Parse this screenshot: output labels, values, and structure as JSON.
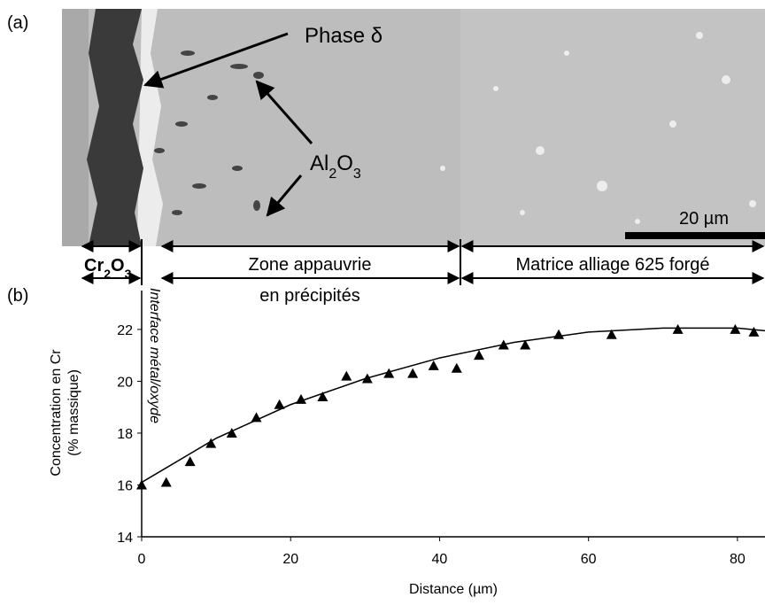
{
  "figure": {
    "panel_a": "(a)",
    "panel_b": "(b)",
    "phase_label": "Phase δ",
    "inclusion_label_parts": [
      "Al",
      "2",
      "O",
      "3"
    ],
    "scale_bar": "20 µm",
    "oxide_zone_parts": [
      "Cr",
      "2",
      "O",
      "3"
    ],
    "depleted_zone": [
      "Zone appauvrie",
      "en précipités"
    ],
    "matrix_zone": "Matrice alliage 625 forgé",
    "interface_label": "Interface métal/oxyde"
  },
  "chart_data": {
    "type": "scatter",
    "x_label": "Distance (µm)",
    "y_label": [
      "Concentration en Cr",
      "(% massique)"
    ],
    "xlim": [
      0,
      83.7
    ],
    "ylim": [
      14,
      23.5
    ],
    "xticks": [
      0,
      20,
      40,
      60,
      80
    ],
    "yticks": [
      14,
      16,
      18,
      20,
      22
    ],
    "series": [
      {
        "marker": "triangle",
        "color": "#000000",
        "x": [
          0,
          3.3,
          6.5,
          9.3,
          12.1,
          15.4,
          18.5,
          21.4,
          24.3,
          27.5,
          30.3,
          33.2,
          36.4,
          39.2,
          42.3,
          45.3,
          48.6,
          51.5,
          56.0,
          63.1,
          72.0,
          79.7,
          82.2
        ],
        "values": [
          16.0,
          16.1,
          16.9,
          17.6,
          18.0,
          18.6,
          19.1,
          19.3,
          19.4,
          20.2,
          20.1,
          20.3,
          20.3,
          20.6,
          20.5,
          21.0,
          21.4,
          21.4,
          21.8,
          21.8,
          22.0,
          22.0,
          21.9
        ]
      },
      {
        "marker": "line",
        "color": "#000000",
        "x": [
          0,
          10,
          20,
          30,
          40,
          50,
          60,
          70,
          80,
          83.7
        ],
        "values": [
          16.1,
          17.8,
          19.1,
          20.1,
          20.9,
          21.5,
          21.9,
          22.05,
          22.05,
          21.95
        ]
      }
    ]
  }
}
